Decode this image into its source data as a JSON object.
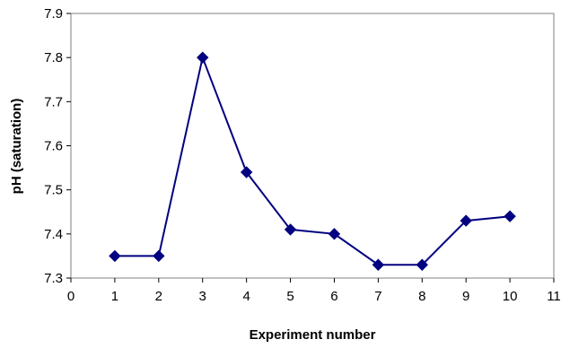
{
  "chart_data": {
    "type": "line",
    "title": "",
    "xlabel": "Experiment number",
    "ylabel": "pH (saturation)",
    "xlim": [
      0,
      11
    ],
    "ylim": [
      7.3,
      7.9
    ],
    "xticks": [
      0,
      1,
      2,
      3,
      4,
      5,
      6,
      7,
      8,
      9,
      10,
      11
    ],
    "yticks": [
      7.3,
      7.4,
      7.5,
      7.6,
      7.7,
      7.8,
      7.9
    ],
    "ytick_labels": [
      "7.3",
      "7.4",
      "7.5",
      "7.6",
      "7.7",
      "7.8",
      "7.9"
    ],
    "grid": false,
    "legend": "none",
    "series": [
      {
        "x": [
          1,
          2,
          3,
          4,
          5,
          6,
          7,
          8,
          9,
          10
        ],
        "y": [
          7.35,
          7.35,
          7.8,
          7.54,
          7.41,
          7.4,
          7.33,
          7.33,
          7.43,
          7.44
        ],
        "color": "#000080",
        "marker": "diamond"
      }
    ]
  }
}
